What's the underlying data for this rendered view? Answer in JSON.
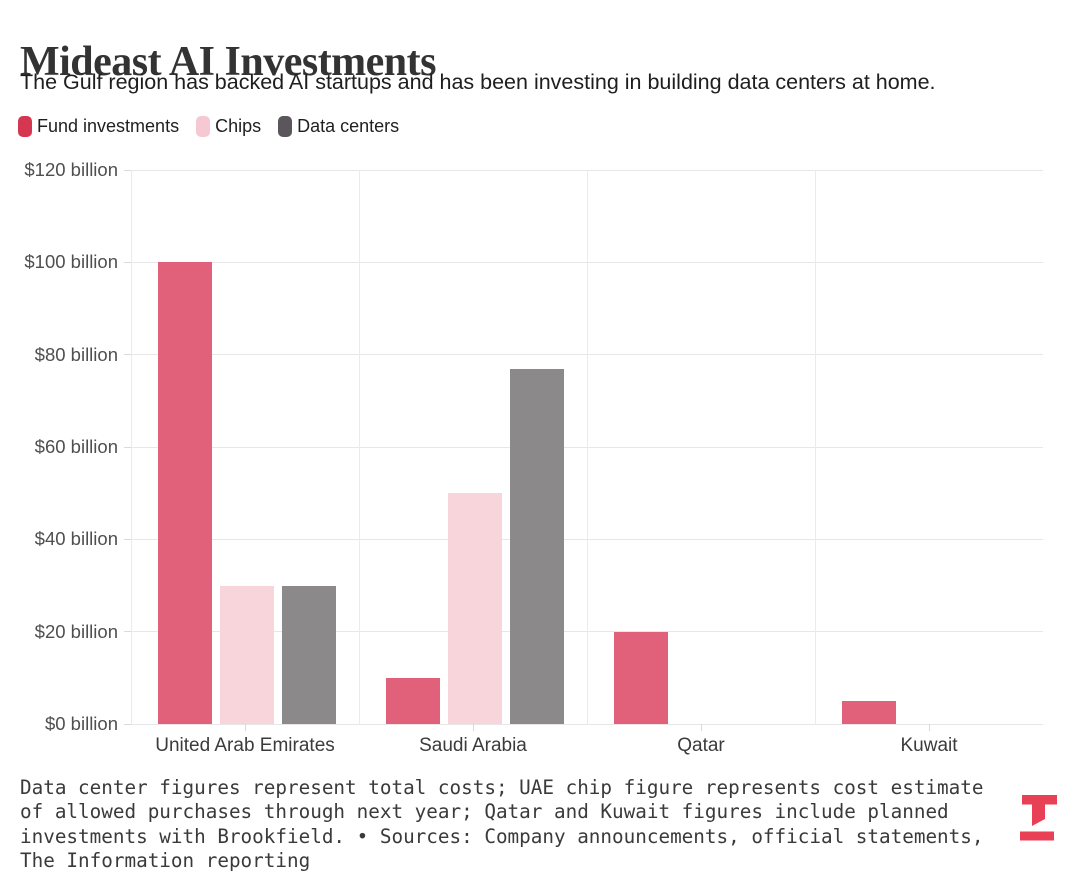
{
  "header": {
    "title": "Mideast AI Investments",
    "subtitle": "The Gulf region has backed AI startups and has been investing in building data centers at home."
  },
  "legend": {
    "items": [
      {
        "label": "Fund investments",
        "color": "#d63750"
      },
      {
        "label": "Chips",
        "color": "#f6c9d2"
      },
      {
        "label": "Data centers",
        "color": "#5a565c"
      }
    ]
  },
  "chart_data": {
    "type": "bar",
    "title": "Mideast AI Investments",
    "subtitle": "The Gulf region has backed AI startups and has been investing in building data centers at home.",
    "categories": [
      "United Arab Emirates",
      "Saudi Arabia",
      "Qatar",
      "Kuwait"
    ],
    "series": [
      {
        "name": "Fund investments",
        "color": "#e1617a",
        "values": [
          100,
          10,
          20,
          5
        ]
      },
      {
        "name": "Chips",
        "color": "#f8d4db",
        "values": [
          30,
          50,
          null,
          null
        ]
      },
      {
        "name": "Data centers",
        "color": "#8b898a",
        "values": [
          30,
          77,
          null,
          null
        ]
      }
    ],
    "unit": "billion US dollars",
    "ylim": [
      0,
      120
    ],
    "ytick_step": 20,
    "yticks": [
      0,
      20,
      40,
      60,
      80,
      100,
      120
    ],
    "ytick_labels": [
      "$0 billion",
      "$20 billion",
      "$40 billion",
      "$60 billion",
      "$80 billion",
      "$100 billion",
      "$120 billion"
    ],
    "grid": true,
    "legend_position": "top-left"
  },
  "footer": {
    "lines": [
      "Data center figures represent total costs; UAE chip figure represents cost estimate",
      "of allowed purchases through next year; Qatar and Kuwait figures include planned",
      "investments with Brookfield. • Sources: Company announcements, official statements,",
      "The Information reporting"
    ],
    "logo_name": "the-information-logo",
    "logo_color": "#e84156"
  }
}
